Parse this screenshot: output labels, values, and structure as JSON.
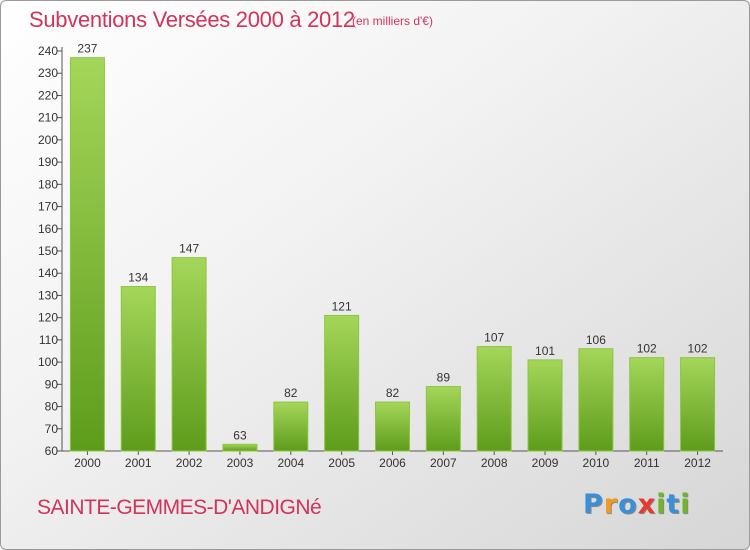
{
  "header": {
    "title": "Subventions Versées 2000 à 2012",
    "unit": "(en milliers d'€)"
  },
  "footer": {
    "commune": "SAINTE-GEMMES-D'ANDIGNé",
    "logo_letters": [
      "P",
      "r",
      "o",
      "x",
      "i",
      "t",
      "i"
    ],
    "logo_colors": [
      "#3a8fd6",
      "#f29a1f",
      "#3a8fd6",
      "#e63a2e",
      "#6fb52c",
      "#3a8fd6",
      "#6fb52c"
    ]
  },
  "chart_data": {
    "type": "bar",
    "title": "Subventions Versées 2000 à 2012",
    "xlabel": "",
    "ylabel": "",
    "categories": [
      "2000",
      "2001",
      "2002",
      "2003",
      "2004",
      "2005",
      "2006",
      "2007",
      "2008",
      "2009",
      "2010",
      "2011",
      "2012"
    ],
    "values": [
      237,
      134,
      147,
      63,
      82,
      121,
      82,
      89,
      107,
      101,
      106,
      102,
      102
    ],
    "ylim": [
      60,
      240
    ],
    "yticks": [
      60,
      70,
      80,
      90,
      100,
      110,
      120,
      130,
      140,
      150,
      160,
      170,
      180,
      190,
      200,
      210,
      220,
      230,
      240
    ],
    "grid": false,
    "bar_color": "#7cba2f"
  }
}
